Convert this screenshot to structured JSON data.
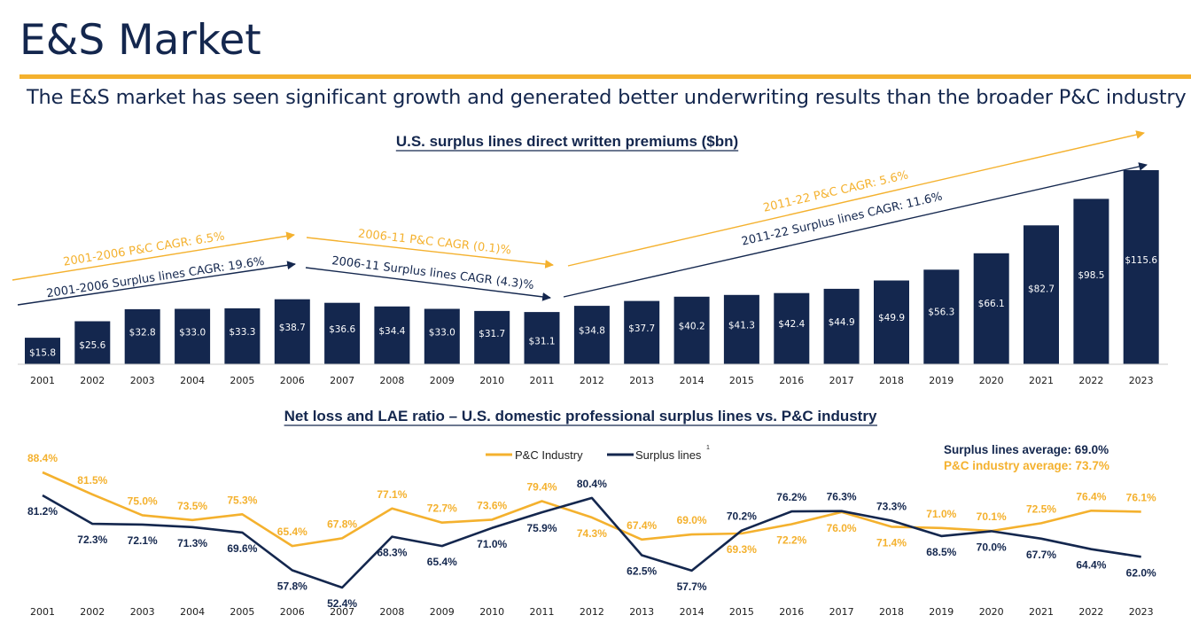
{
  "header": {
    "title": "E&S Market",
    "subtitle": "The E&S market has seen significant growth and generated better underwriting results than the broader P&C industry"
  },
  "colors": {
    "navy": "#14274e",
    "gold": "#f4b12e"
  },
  "chart_data": [
    {
      "type": "bar",
      "title": "U.S. surplus lines direct written premiums ($bn)",
      "categories": [
        "2001",
        "2002",
        "2003",
        "2004",
        "2005",
        "2006",
        "2007",
        "2008",
        "2009",
        "2010",
        "2011",
        "2012",
        "2013",
        "2014",
        "2015",
        "2016",
        "2017",
        "2018",
        "2019",
        "2020",
        "2021",
        "2022",
        "2023"
      ],
      "values": [
        15.8,
        25.6,
        32.8,
        33.0,
        33.3,
        38.7,
        36.6,
        34.4,
        33.0,
        31.7,
        31.1,
        34.8,
        37.7,
        40.2,
        41.3,
        42.4,
        44.9,
        49.9,
        56.3,
        66.1,
        82.7,
        98.5,
        115.6
      ],
      "value_labels": [
        "$15.8",
        "$25.6",
        "$32.8",
        "$33.0",
        "$33.3",
        "$38.7",
        "$36.6",
        "$34.4",
        "$33.0",
        "$31.7",
        "$31.1",
        "$34.8",
        "$37.7",
        "$40.2",
        "$41.3",
        "$42.4",
        "$44.9",
        "$49.9",
        "$56.3",
        "$66.1",
        "$82.7",
        "$98.5",
        "$115.6"
      ],
      "annotations": [
        {
          "text": "2001-2006 P&C CAGR: 6.5%",
          "color": "gold",
          "from": "2001",
          "to": "2006"
        },
        {
          "text": "2001-2006 Surplus lines CAGR: 19.6%",
          "color": "navy",
          "from": "2001",
          "to": "2006"
        },
        {
          "text": "2006-11 P&C CAGR (0.1)%",
          "color": "gold",
          "from": "2006",
          "to": "2011"
        },
        {
          "text": "2006-11 Surplus lines CAGR (4.3)%",
          "color": "navy",
          "from": "2006",
          "to": "2011"
        },
        {
          "text": "2011-22 P&C CAGR: 5.6%",
          "color": "gold",
          "from": "2011",
          "to": "2023"
        },
        {
          "text": "2011-22 Surplus lines CAGR: 11.6%",
          "color": "navy",
          "from": "2011",
          "to": "2023"
        }
      ]
    },
    {
      "type": "line",
      "title": "Net loss and LAE ratio – U.S. domestic professional surplus lines vs. P&C industry",
      "x": [
        "2001",
        "2002",
        "2003",
        "2004",
        "2005",
        "2006",
        "2007",
        "2008",
        "2009",
        "2010",
        "2011",
        "2012",
        "2013",
        "2014",
        "2015",
        "2016",
        "2017",
        "2018",
        "2019",
        "2020",
        "2021",
        "2022",
        "2023"
      ],
      "series": [
        {
          "name": "P&C Industry",
          "color": "gold",
          "values": [
            88.4,
            81.5,
            75.0,
            73.5,
            75.3,
            65.4,
            67.8,
            77.1,
            72.7,
            73.6,
            79.4,
            74.3,
            67.4,
            69.0,
            69.3,
            72.2,
            76.0,
            71.4,
            71.0,
            70.1,
            72.5,
            76.4,
            76.1
          ],
          "labels": [
            "88.4%",
            "81.5%",
            "75.0%",
            "73.5%",
            "75.3%",
            "65.4%",
            "67.8%",
            "77.1%",
            "72.7%",
            "73.6%",
            "79.4%",
            "74.3%",
            "67.4%",
            "69.0%",
            "69.3%",
            "72.2%",
            "76.0%",
            "71.4%",
            "71.0%",
            "70.1%",
            "72.5%",
            "76.4%",
            "76.1%"
          ]
        },
        {
          "name": "Surplus lines",
          "footnote": "1",
          "color": "navy",
          "values": [
            81.2,
            72.3,
            72.1,
            71.3,
            69.6,
            57.8,
            52.4,
            68.3,
            65.4,
            71.0,
            75.9,
            80.4,
            62.5,
            57.7,
            70.2,
            76.2,
            76.3,
            73.3,
            68.5,
            70.0,
            67.7,
            64.4,
            62.0
          ],
          "labels": [
            "81.2%",
            "72.3%",
            "72.1%",
            "71.3%",
            "69.6%",
            "57.8%",
            "52.4%",
            "68.3%",
            "65.4%",
            "71.0%",
            "75.9%",
            "80.4%",
            "62.5%",
            "57.7%",
            "70.2%",
            "76.2%",
            "76.3%",
            "73.3%",
            "68.5%",
            "70.0%",
            "67.7%",
            "64.4%",
            "62.0%"
          ]
        }
      ],
      "averages": [
        {
          "text": "Surplus lines average: 69.0%",
          "color": "navy"
        },
        {
          "text": "P&C industry average: 73.7%",
          "color": "gold"
        }
      ],
      "legend_position": "top-center"
    }
  ]
}
